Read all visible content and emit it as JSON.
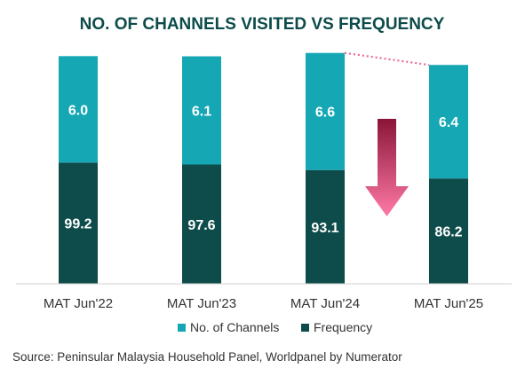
{
  "chart_data": {
    "type": "bar",
    "stacked": true,
    "title": "NO. OF CHANNELS VISITED VS FREQUENCY",
    "categories": [
      "MAT Jun'22",
      "MAT Jun'23",
      "MAT Jun'24",
      "MAT Jun'25"
    ],
    "series": [
      {
        "name": "No. of Channels",
        "values": [
          6.0,
          6.1,
          6.6,
          6.4
        ],
        "labels": [
          "6.0",
          "6.1",
          "6.6",
          "6.4"
        ],
        "color": "#16a7b5"
      },
      {
        "name": "Frequency",
        "values": [
          99.2,
          97.6,
          93.1,
          86.2
        ],
        "labels": [
          "99.2",
          "97.6",
          "93.1",
          "86.2"
        ],
        "color": "#0d4c4a"
      }
    ],
    "legend_position": "bottom",
    "grid": false,
    "source": "Source: Peninsular Malaysia Household Panel, Worldpanel by Numerator",
    "annotations": {
      "dotted_line_color": "#e9679b",
      "arrow_colors": [
        "#8a1538",
        "#ff7aa6"
      ]
    }
  }
}
